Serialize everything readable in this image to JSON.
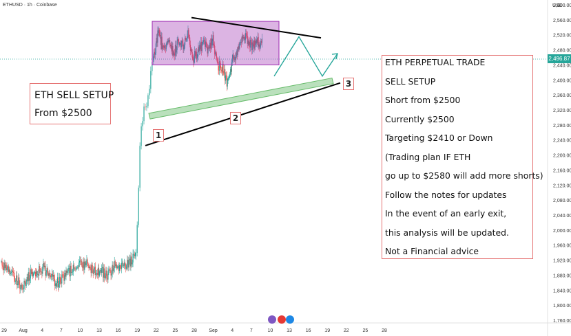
{
  "header": {
    "symbol": "ETHUSD · 1h · Coinbase",
    "currency": "USD"
  },
  "current_price": "2,496.87",
  "colors": {
    "up": "#26a69a",
    "down": "#ef5350",
    "box": "#9c27b0",
    "channel": "#66bb6a",
    "note_border": "#e57373"
  },
  "chart_data": {
    "type": "candlestick",
    "symbol": "ETHUSD",
    "interval": "1h",
    "exchange": "Coinbase",
    "ylim": [
      1760,
      2600
    ],
    "y_ticks": [
      "2,600.00",
      "2,560.00",
      "2,520.00",
      "2,480.00",
      "2,440.00",
      "2,400.00",
      "2,360.00",
      "2,320.00",
      "2,280.00",
      "2,240.00",
      "2,200.00",
      "2,160.00",
      "2,120.00",
      "2,080.00",
      "2,040.00",
      "2,000.00",
      "1,960.00",
      "1,920.00",
      "1,880.00",
      "1,840.00",
      "1,800.00",
      "1,760.00"
    ],
    "x_ticks": [
      "29",
      "Aug",
      "4",
      "7",
      "10",
      "13",
      "16",
      "19",
      "22",
      "25",
      "28",
      "Sep",
      "4",
      "7",
      "10",
      "13",
      "16",
      "19",
      "22",
      "25",
      "28"
    ],
    "close_segments": [
      {
        "from": "29",
        "to": "19",
        "close": [
          1916,
          1890,
          1870,
          1850,
          1880,
          1890,
          1900,
          1870,
          1860,
          1880,
          1895,
          1905,
          1910,
          1895,
          1890,
          1880,
          1905,
          1900,
          1910,
          1930
        ]
      },
      {
        "from": "19",
        "to": "22",
        "close": [
          1930,
          2080,
          2240,
          2300,
          2330,
          2340,
          2380,
          2420,
          2460
        ]
      },
      {
        "from": "22",
        "to": "10",
        "close": [
          2460,
          2530,
          2480,
          2510,
          2470,
          2500,
          2490,
          2520,
          2460,
          2470,
          2500,
          2480,
          2510,
          2440,
          2430,
          2390,
          2450,
          2480,
          2520,
          2510,
          2490,
          2500,
          2496
        ]
      }
    ],
    "annotations": {
      "labels": [
        "1",
        "2",
        "3"
      ],
      "box_range": [
        2440,
        2556
      ],
      "resistance": [
        [
          2566,
          "22"
        ],
        [
          2512,
          "16"
        ]
      ],
      "support": [
        [
          2225,
          "19"
        ],
        [
          2392,
          "19"
        ]
      ],
      "channel": [
        [
          2311,
          "19"
        ],
        [
          2405,
          "19"
        ]
      ],
      "projected_path": [
        2410,
        2515,
        2410,
        2470
      ]
    }
  },
  "note_left": {
    "line1": "ETH SELL SETUP",
    "line2": "From $2500"
  },
  "note_right": {
    "l1": "ETH PERPETUAL TRADE",
    "l2": "SELL SETUP",
    "l3": "Short from $2500",
    "l4": "Currently $2500",
    "l5": "Targeting $2410 or Down",
    "l6": "(Trading plan IF ETH",
    "l7": "go up to $2580 will add more shorts)",
    "l8": "Follow the notes for updates",
    "l9": "In the event of an early exit,",
    "l10": "this analysis will be updated.",
    "l11": "Not a Financial advice"
  }
}
